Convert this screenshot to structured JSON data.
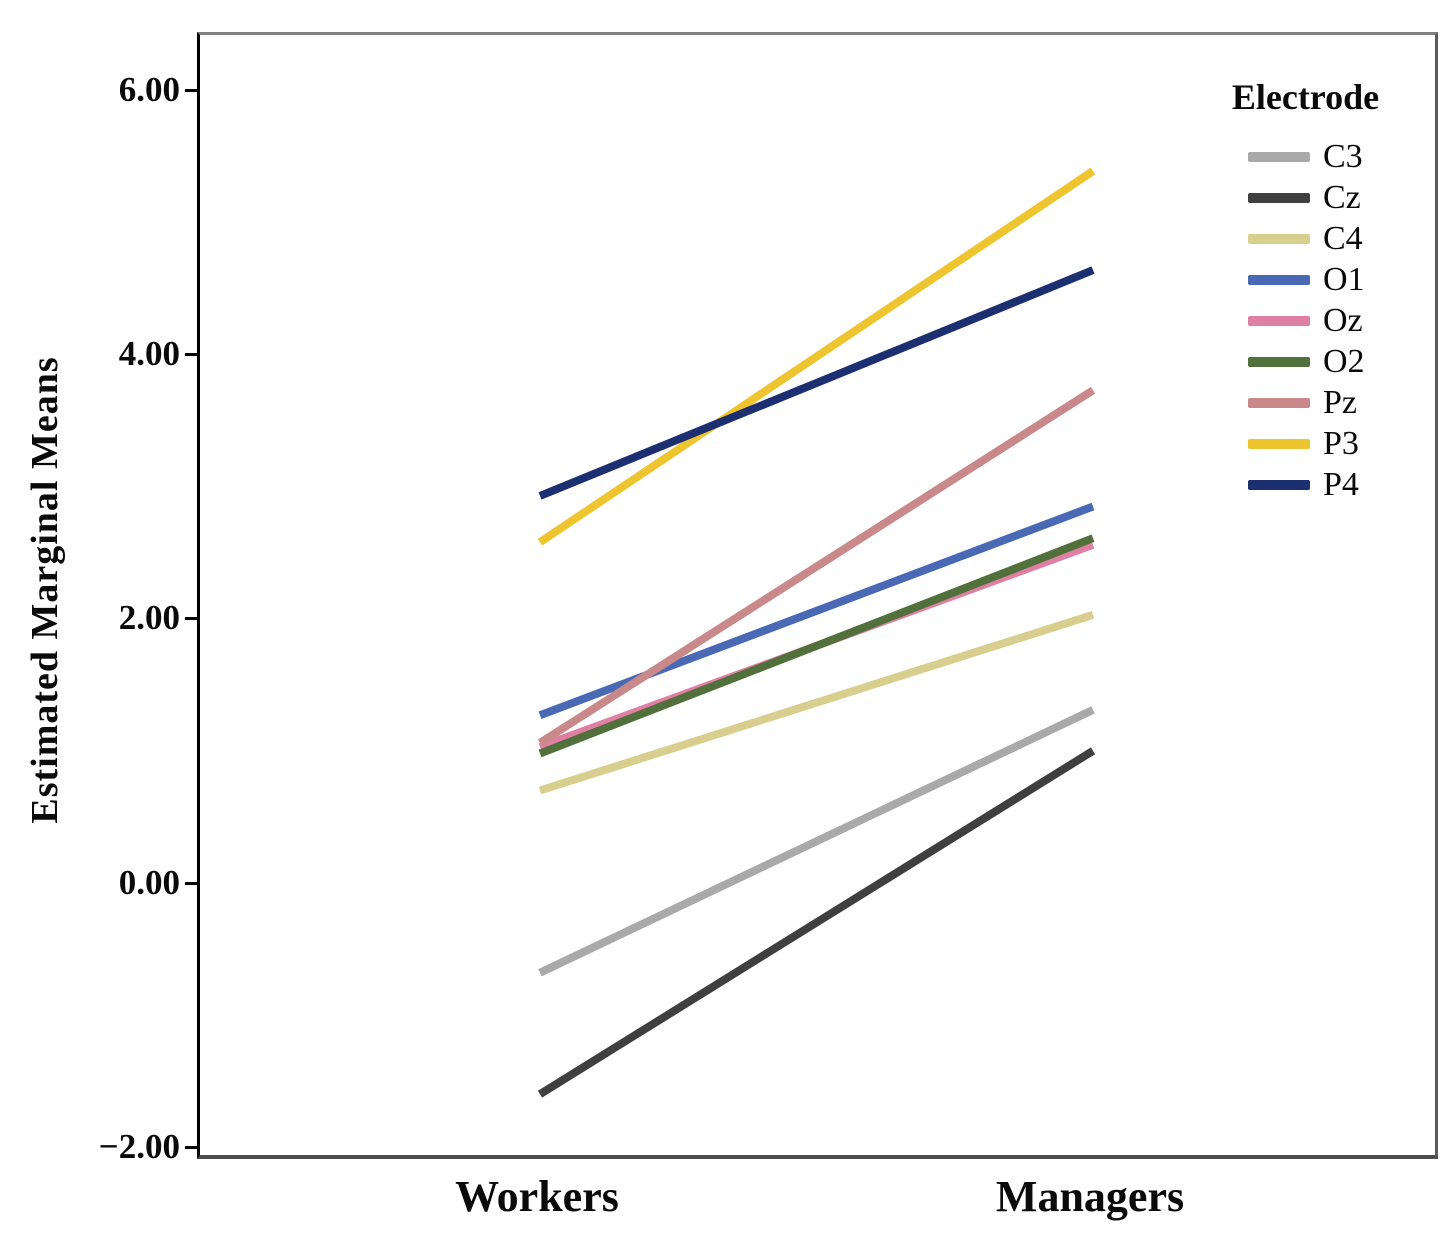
{
  "figure": {
    "y_axis_title": "Estimated Marginal Means",
    "legend_title": "Electrode"
  },
  "chart_data": {
    "type": "line",
    "title": "",
    "xlabel": "",
    "ylabel": "Estimated Marginal Means",
    "categories": [
      "Workers",
      "Managers"
    ],
    "yticks_labels": [
      "6.00",
      "4.00",
      "2.00",
      "0.00",
      "−2.00"
    ],
    "ytick_values": [
      6.0,
      4.0,
      2.0,
      0.0,
      -2.0
    ],
    "ylim": [
      -2.04,
      6.44
    ],
    "grid": false,
    "legend_position": "right",
    "legend_title": "Electrode",
    "series": [
      {
        "name": "C3",
        "color": "#a9a9a9",
        "values": [
          -0.66,
          1.33
        ]
      },
      {
        "name": "Cz",
        "color": "#3f3f3f",
        "values": [
          -1.58,
          1.02
        ]
      },
      {
        "name": "C4",
        "color": "#d8cf8e",
        "values": [
          0.72,
          2.05
        ]
      },
      {
        "name": "O1",
        "color": "#4a69b5",
        "values": [
          1.29,
          2.87
        ]
      },
      {
        "name": "Oz",
        "color": "#e07fa4",
        "values": [
          1.05,
          2.58
        ]
      },
      {
        "name": "O2",
        "color": "#52703c",
        "values": [
          1.0,
          2.63
        ]
      },
      {
        "name": "Pz",
        "color": "#c9898b",
        "values": [
          1.08,
          3.75
        ]
      },
      {
        "name": "P3",
        "color": "#eec52e",
        "values": [
          2.6,
          5.41
        ]
      },
      {
        "name": "P4",
        "color": "#1c2f70",
        "values": [
          2.95,
          4.66
        ]
      }
    ]
  }
}
